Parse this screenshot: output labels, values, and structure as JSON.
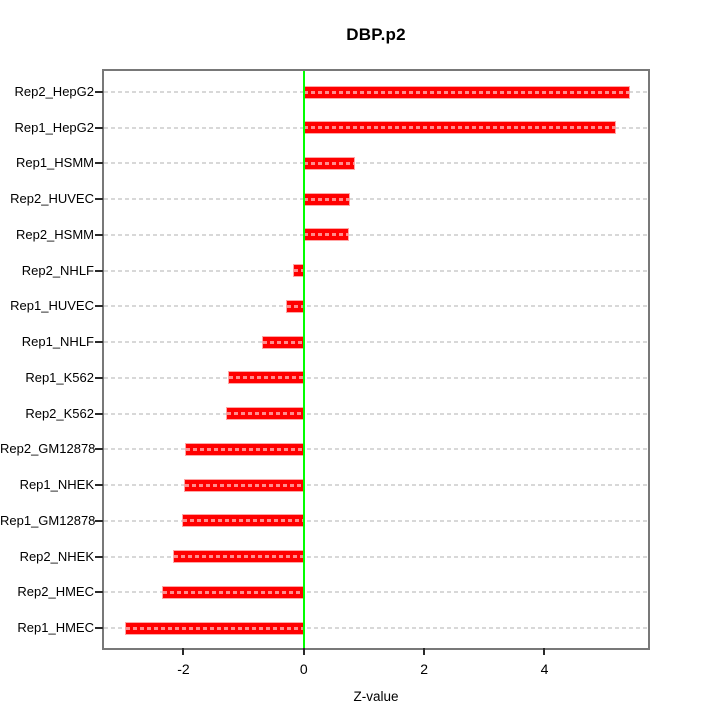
{
  "chart_data": {
    "type": "bar",
    "orientation": "horizontal",
    "title": "DBP.p2",
    "xlabel": "Z-value",
    "categories": [
      "Rep2_HepG2",
      "Rep1_HepG2",
      "Rep1_HSMM",
      "Rep2_HUVEC",
      "Rep2_HSMM",
      "Rep2_NHLF",
      "Rep1_HUVEC",
      "Rep1_NHLF",
      "Rep1_K562",
      "Rep2_K562",
      "Rep2_GM12878",
      "Rep1_NHEK",
      "Rep1_GM12878",
      "Rep2_NHEK",
      "Rep2_HMEC",
      "Rep1_HMEC"
    ],
    "values": [
      5.4,
      5.17,
      0.83,
      0.75,
      0.73,
      -0.17,
      -0.28,
      -0.68,
      -1.25,
      -1.28,
      -1.96,
      -1.98,
      -2.01,
      -2.15,
      -2.34,
      -2.96
    ],
    "xlim": [
      -3.32,
      5.72
    ],
    "xticks": [
      -2,
      0,
      2,
      4
    ],
    "xtick_labels": [
      "-2",
      "0",
      "2",
      "4"
    ],
    "grid": "dashed-horizontal-per-category",
    "legend": "none",
    "colors": {
      "bar": "#ff0000",
      "bar_dash_stripe": "#ffb3b3",
      "zero_line": "#00ff00",
      "gridline": "#d8d8d8",
      "plot_border": "#787878",
      "text": "#000000",
      "background": "#ffffff"
    }
  }
}
